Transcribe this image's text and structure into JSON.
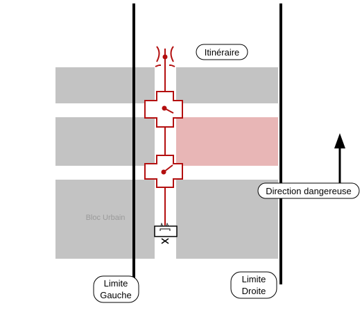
{
  "labels": {
    "itinerary": "Itinéraire",
    "danger_direction": "Direction dangereuse",
    "urban_block": "Bloc Urbain",
    "left_limit_line1": "Limite",
    "left_limit_line2": "Gauche",
    "right_limit_line1": "Limite",
    "right_limit_line2": "Droite"
  },
  "colors": {
    "block_gray": "#c3c3c3",
    "danger_zone": "#e8b6b6",
    "route_red": "#b30f0f",
    "limit_line": "#000000",
    "urban_block_text": "#9a9a9a"
  },
  "icons": {
    "direction": "arrow-up-icon",
    "route_start": "route-end-marker-icon",
    "route_end": "terminal-box-icon",
    "junction": "cross-junction-icon"
  }
}
